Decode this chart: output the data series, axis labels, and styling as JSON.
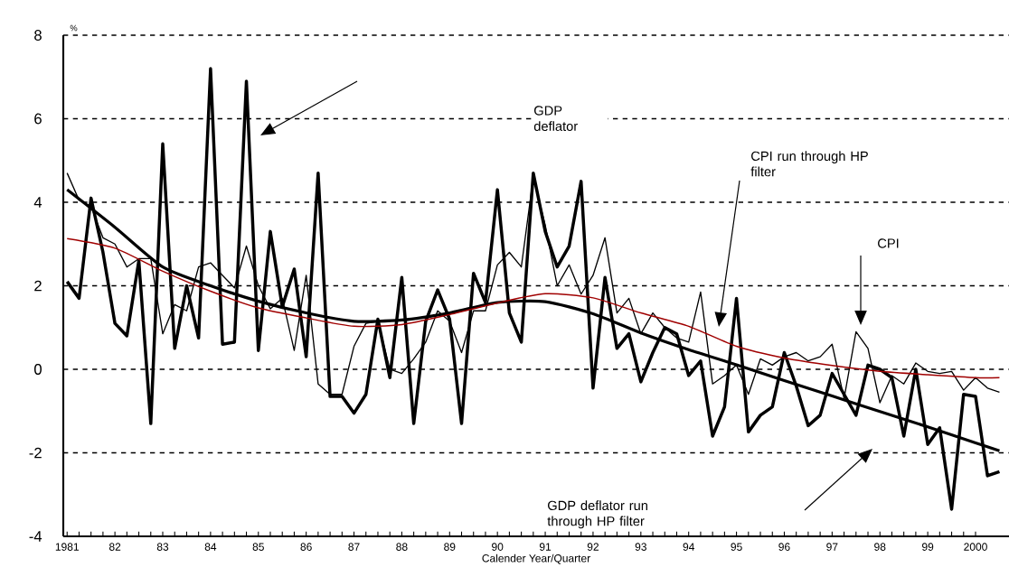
{
  "chart_data": {
    "type": "line",
    "xlabel": "Calender Year/Quarter",
    "ylabel": "%",
    "x": [
      1981.0,
      1981.25,
      1981.5,
      1981.75,
      1982.0,
      1982.25,
      1982.5,
      1982.75,
      1983.0,
      1983.25,
      1983.5,
      1983.75,
      1984.0,
      1984.25,
      1984.5,
      1984.75,
      1985.0,
      1985.25,
      1985.5,
      1985.75,
      1986.0,
      1986.25,
      1986.5,
      1986.75,
      1987.0,
      1987.25,
      1987.5,
      1987.75,
      1988.0,
      1988.25,
      1988.5,
      1988.75,
      1989.0,
      1989.25,
      1989.5,
      1989.75,
      1990.0,
      1990.25,
      1990.5,
      1990.75,
      1991.0,
      1991.25,
      1991.5,
      1991.75,
      1992.0,
      1992.25,
      1992.5,
      1992.75,
      1993.0,
      1993.25,
      1993.5,
      1993.75,
      1994.0,
      1994.25,
      1994.5,
      1994.75,
      1995.0,
      1995.25,
      1995.5,
      1995.75,
      1996.0,
      1996.25,
      1996.5,
      1996.75,
      1997.0,
      1997.25,
      1997.5,
      1997.75,
      1998.0,
      1998.25,
      1998.5,
      1998.75,
      1999.0,
      1999.25,
      1999.5,
      1999.75,
      2000.0,
      2000.25,
      2000.5
    ],
    "series": [
      {
        "color": "#000000",
        "values": [
          2.1,
          1.7,
          4.1,
          2.8,
          1.1,
          0.8,
          2.6,
          -1.3,
          5.4,
          0.5,
          2.0,
          0.75,
          7.2,
          0.6,
          0.65,
          6.9,
          0.45,
          3.3,
          1.5,
          2.4,
          0.3,
          4.7,
          -0.65,
          -0.65,
          -1.05,
          -0.6,
          1.2,
          -0.2,
          2.2,
          -1.3,
          1.15,
          1.9,
          1.2,
          -1.3,
          2.3,
          1.6,
          4.3,
          1.35,
          0.65,
          4.7,
          3.3,
          2.45,
          2.95,
          4.5,
          -0.45,
          2.2,
          0.5,
          0.85,
          -0.3,
          0.4,
          1.0,
          0.85,
          -0.15,
          0.2,
          -1.6,
          -0.9,
          1.7,
          -1.5,
          -1.1,
          -0.9,
          0.4,
          -0.4,
          -1.35,
          -1.1,
          -0.1,
          -0.6,
          -1.1,
          0.1,
          0,
          -0.2,
          -1.6,
          0,
          -1.8,
          -1.4,
          -3.35,
          -0.6,
          -0.65,
          -2.55,
          -2.45
        ]
      },
      {
        "color": "#000000",
        "values": [
          4.7,
          4.05,
          3.9,
          3.15,
          3.0,
          2.45,
          2.65,
          2.65,
          0.85,
          1.55,
          1.4,
          2.45,
          2.55,
          2.25,
          1.95,
          2.95,
          2.0,
          1.45,
          1.7,
          0.45,
          2.25,
          -0.35,
          -0.6,
          -0.6,
          0.55,
          1.1,
          1.15,
          0,
          -0.1,
          0.25,
          0.65,
          1.4,
          1.15,
          0.4,
          1.4,
          1.4,
          2.5,
          2.8,
          2.45,
          4.6,
          3.45,
          2.0,
          2.5,
          1.8,
          2.25,
          3.15,
          1.35,
          1.7,
          0.85,
          1.35,
          1.0,
          0.75,
          0.65,
          1.85,
          -0.35,
          -0.15,
          0.1,
          -0.6,
          0.25,
          0.1,
          0.3,
          0.4,
          0.2,
          0.3,
          0.6,
          -0.7,
          0.9,
          0.5,
          -0.8,
          -0.15,
          -0.35,
          0.15,
          -0.05,
          -0.1,
          -0.05,
          -0.5,
          -0.2,
          -0.45,
          -0.55
        ]
      },
      {
        "color": "#000000",
        "x": [
          1981,
          1982,
          1983,
          1984,
          1985,
          1986,
          1987,
          1988,
          1989,
          1990,
          1991,
          1992,
          1993,
          1994,
          1995,
          1996,
          1997,
          1998,
          1999,
          2000,
          2000.5
        ],
        "values": [
          4.3,
          3.4,
          2.45,
          2.0,
          1.63,
          1.35,
          1.15,
          1.18,
          1.35,
          1.6,
          1.62,
          1.33,
          0.87,
          0.47,
          0.11,
          -0.27,
          -0.64,
          -1.01,
          -1.38,
          -1.76,
          -1.95
        ]
      },
      {
        "color": "#a00000",
        "x": [
          1981,
          1982,
          1983,
          1984,
          1985,
          1986,
          1987,
          1988,
          1989,
          1990,
          1991,
          1992,
          1993,
          1994,
          1995,
          1996,
          1997,
          1998,
          1999,
          2000,
          2000.5
        ],
        "values": [
          3.13,
          2.9,
          2.35,
          1.87,
          1.47,
          1.23,
          1.03,
          1.07,
          1.31,
          1.59,
          1.81,
          1.71,
          1.35,
          1.03,
          0.55,
          0.27,
          0.09,
          -0.05,
          -0.13,
          -0.2,
          -0.2
        ]
      }
    ],
    "xlim": [
      1980.92,
      2000.7
    ],
    "ylim": [
      -4,
      8
    ],
    "xticks": [
      {
        "value": 1981,
        "label": "1981"
      },
      {
        "value": 1982,
        "label": "82"
      },
      {
        "value": 1983,
        "label": "83"
      },
      {
        "value": 1984,
        "label": "84"
      },
      {
        "value": 1985,
        "label": "85"
      },
      {
        "value": 1986,
        "label": "86"
      },
      {
        "value": 1987,
        "label": "87"
      },
      {
        "value": 1988,
        "label": "88"
      },
      {
        "value": 1989,
        "label": "89"
      },
      {
        "value": 1990,
        "label": "90"
      },
      {
        "value": 1991,
        "label": "91"
      },
      {
        "value": 1992,
        "label": "92"
      },
      {
        "value": 1993,
        "label": "93"
      },
      {
        "value": 1994,
        "label": "94"
      },
      {
        "value": 1995,
        "label": "95"
      },
      {
        "value": 1996,
        "label": "96"
      },
      {
        "value": 1997,
        "label": "97"
      },
      {
        "value": 1998,
        "label": "98"
      },
      {
        "value": 1999,
        "label": "99"
      },
      {
        "value": 2000,
        "label": "2000"
      }
    ],
    "yticks": [
      -4,
      -2,
      0,
      2,
      4,
      6,
      8
    ],
    "grid": "y",
    "annotations": [
      "GDP deflator",
      "CPI run through HP filter",
      "CPI",
      "GDP deflator run through HP filter"
    ]
  }
}
